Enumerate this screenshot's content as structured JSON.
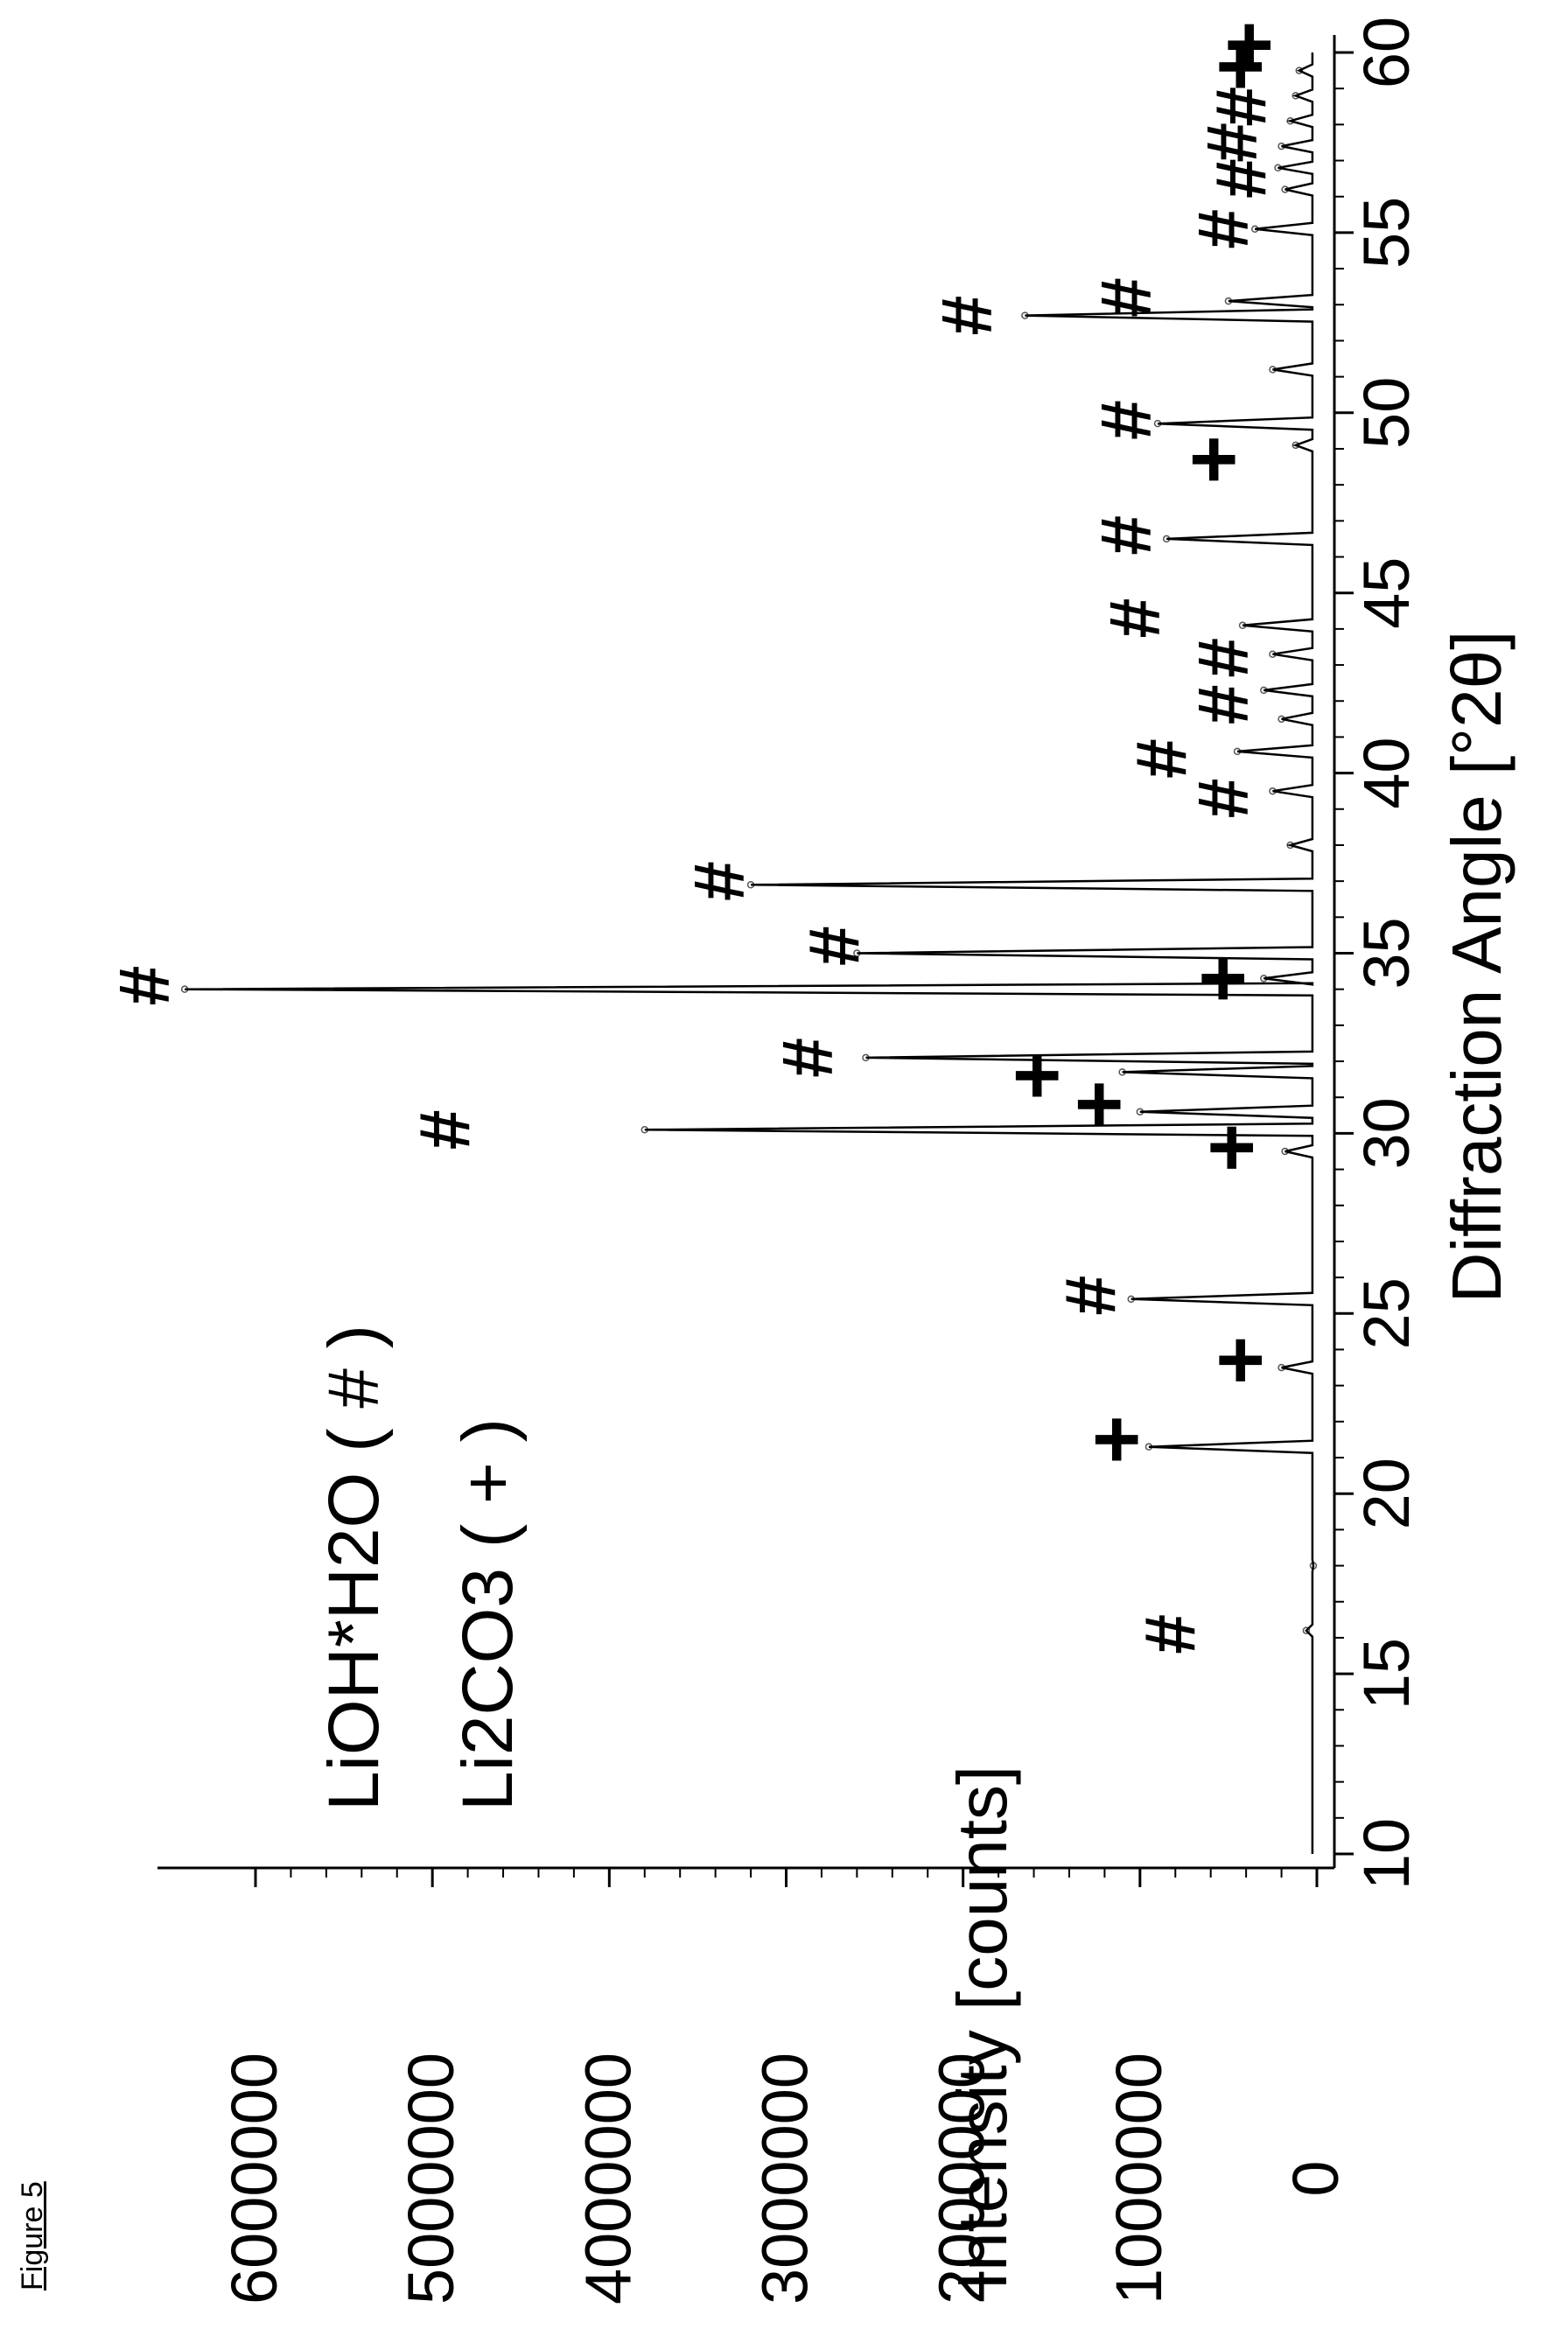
{
  "figure_label": "Figure 5",
  "chart_data": {
    "type": "line",
    "title": "",
    "xlabel": "Diffraction Angle [°2θ]",
    "ylabel": "Intensity [counts]",
    "xlim": [
      10,
      60
    ],
    "ylim": [
      0,
      6500000
    ],
    "x_ticks": [
      "10",
      "15",
      "20",
      "25",
      "30",
      "35",
      "40",
      "45",
      "50",
      "55",
      "60"
    ],
    "y_ticks": [
      "0",
      "1000000",
      "2000000",
      "3000000",
      "4000000",
      "5000000",
      "6000000"
    ],
    "legend": [
      {
        "label": "LiOH*H2O ( # )",
        "marker": "#"
      },
      {
        "label": "Li2CO3 ( + )",
        "marker": "+"
      }
    ],
    "series": [
      {
        "peaks": [
          {
            "x": 16.2,
            "y": 60000
          },
          {
            "x": 18.0,
            "y": 20000
          },
          {
            "x": 21.3,
            "y": 950000
          },
          {
            "x": 23.5,
            "y": 200000
          },
          {
            "x": 25.4,
            "y": 1050000
          },
          {
            "x": 29.5,
            "y": 180000
          },
          {
            "x": 30.1,
            "y": 3800000
          },
          {
            "x": 30.6,
            "y": 1000000
          },
          {
            "x": 31.7,
            "y": 1100000
          },
          {
            "x": 32.1,
            "y": 2550000
          },
          {
            "x": 34.0,
            "y": 6400000
          },
          {
            "x": 34.3,
            "y": 300000
          },
          {
            "x": 35.0,
            "y": 2600000
          },
          {
            "x": 36.9,
            "y": 3200000
          },
          {
            "x": 38.0,
            "y": 150000
          },
          {
            "x": 39.5,
            "y": 250000
          },
          {
            "x": 40.6,
            "y": 450000
          },
          {
            "x": 41.5,
            "y": 200000
          },
          {
            "x": 42.3,
            "y": 300000
          },
          {
            "x": 43.3,
            "y": 250000
          },
          {
            "x": 44.1,
            "y": 420000
          },
          {
            "x": 46.5,
            "y": 850000
          },
          {
            "x": 49.1,
            "y": 120000
          },
          {
            "x": 49.7,
            "y": 900000
          },
          {
            "x": 51.2,
            "y": 250000
          },
          {
            "x": 52.7,
            "y": 1650000
          },
          {
            "x": 53.1,
            "y": 500000
          },
          {
            "x": 55.1,
            "y": 350000
          },
          {
            "x": 56.2,
            "y": 180000
          },
          {
            "x": 56.8,
            "y": 220000
          },
          {
            "x": 57.4,
            "y": 200000
          },
          {
            "x": 58.1,
            "y": 150000
          },
          {
            "x": 58.8,
            "y": 120000
          },
          {
            "x": 59.5,
            "y": 100000
          }
        ]
      }
    ],
    "annotations": [
      {
        "text": "#",
        "x": 16.1,
        "y": 800000
      },
      {
        "text": "+",
        "x": 21.5,
        "y": 1100000
      },
      {
        "text": "+",
        "x": 23.7,
        "y": 400000
      },
      {
        "text": "#",
        "x": 25.5,
        "y": 1250000
      },
      {
        "text": "+",
        "x": 29.6,
        "y": 450000
      },
      {
        "text": "#",
        "x": 30.1,
        "y": 4900000
      },
      {
        "text": "+",
        "x": 30.8,
        "y": 1200000
      },
      {
        "text": "+",
        "x": 31.6,
        "y": 1550000
      },
      {
        "text": "#",
        "x": 32.1,
        "y": 2850000
      },
      {
        "text": "#",
        "x": 34.1,
        "y": 6600000
      },
      {
        "text": "+",
        "x": 34.3,
        "y": 500000
      },
      {
        "text": "#",
        "x": 35.2,
        "y": 2700000
      },
      {
        "text": "#",
        "x": 37.0,
        "y": 3350000
      },
      {
        "text": "#",
        "x": 39.3,
        "y": 500000
      },
      {
        "text": "#",
        "x": 40.4,
        "y": 850000
      },
      {
        "text": "#",
        "x": 41.9,
        "y": 500000
      },
      {
        "text": "#",
        "x": 43.2,
        "y": 500000
      },
      {
        "text": "#",
        "x": 44.3,
        "y": 1000000
      },
      {
        "text": "#",
        "x": 46.6,
        "y": 1050000
      },
      {
        "text": "+",
        "x": 48.7,
        "y": 550000
      },
      {
        "text": "#",
        "x": 49.8,
        "y": 1050000
      },
      {
        "text": "#",
        "x": 52.7,
        "y": 1950000
      },
      {
        "text": "#",
        "x": 53.2,
        "y": 1050000
      },
      {
        "text": "#",
        "x": 55.1,
        "y": 500000
      },
      {
        "text": "#",
        "x": 56.5,
        "y": 400000
      },
      {
        "text": "#",
        "x": 57.5,
        "y": 450000
      },
      {
        "text": "#",
        "x": 58.5,
        "y": 400000
      },
      {
        "text": "+",
        "x": 59.6,
        "y": 400000
      },
      {
        "text": "+",
        "x": 60.2,
        "y": 350000
      }
    ],
    "grid": false
  }
}
